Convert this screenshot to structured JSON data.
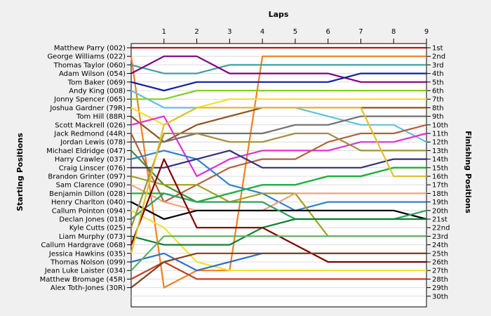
{
  "chart_data": {
    "type": "line",
    "title": "",
    "xlabel": "Laps",
    "ylabel_left": "Starting Positions",
    "ylabel_right": "Finishing Positions",
    "x": [
      0,
      1,
      2,
      3,
      4,
      5,
      6,
      7,
      8,
      9
    ],
    "x_tick_labels": [
      "1",
      "2",
      "3",
      "4",
      "5",
      "6",
      "7",
      "8",
      "9"
    ],
    "y_range": [
      1,
      30
    ],
    "grid": "horizontal",
    "starting_labels": [
      "Matthew Parry (002)",
      "George Williams (022)",
      "Thomas Taylor (060)",
      "Adam Wilson (054)",
      "Tom Baker (069)",
      "Andy King (008)",
      "Jonny Spencer (065)",
      "Joshua Gardner (79R)",
      "Tom Hill (88R)",
      "Scott Mackrell (026)",
      "Jack Redmond (44R)",
      "Jordan Lewis (078)",
      "Michael Eldridge (047)",
      "Harry Crawley (037)",
      "Craig Linscer (076)",
      "Brandon Grinter (097)",
      "Sam Clarence (090)",
      "Benjamin Dillon (028)",
      "Henry Charlton (040)",
      "Callum Pointon (094)",
      "Declan Jones (018)",
      "Kyle Cutts (025)",
      "Liam Murphy (073)",
      "Callum Hardgrave (068)",
      "Jessica Hawkins (035)",
      "Thomas Nolson (099)",
      "Jean Luke Laister (034)",
      "Matthew Bromage (45R)",
      "Alex Toth-Jones (30R)"
    ],
    "finishing_labels": [
      "1st",
      "2nd",
      "3rd",
      "4th",
      "5th",
      "6th",
      "7th",
      "8th",
      "9th",
      "10th",
      "11th",
      "12th",
      "13th",
      "14th",
      "15th",
      "16th",
      "17th",
      "18th",
      "19th",
      "20th",
      "21st",
      "22nd",
      "23rd",
      "24th",
      "25th",
      "26th",
      "27th",
      "28th",
      "29th",
      "30th"
    ],
    "series": [
      {
        "color": "#b01818",
        "values": [
          1,
          1,
          1,
          1,
          1,
          1,
          1,
          1,
          1,
          1
        ]
      },
      {
        "color": "#f08020",
        "values": [
          2,
          29,
          27,
          27,
          2,
          2,
          2,
          2,
          2,
          2
        ]
      },
      {
        "color": "#40a0a0",
        "values": [
          3,
          4,
          4,
          3,
          3,
          3,
          3,
          3,
          3,
          3
        ]
      },
      {
        "color": "#800080",
        "values": [
          4,
          2,
          2,
          4,
          4,
          4,
          4,
          5,
          5,
          5
        ]
      },
      {
        "color": "#1020a0",
        "values": [
          5,
          6,
          5,
          5,
          5,
          5,
          5,
          4,
          4,
          4
        ]
      },
      {
        "color": "#60c0e0",
        "values": [
          6,
          8,
          8,
          8,
          8,
          8,
          9,
          10,
          10,
          12
        ]
      },
      {
        "color": "#80d020",
        "values": [
          7,
          7,
          6,
          6,
          6,
          6,
          6,
          6,
          6,
          6
        ]
      },
      {
        "color": "#f0e030",
        "values": [
          8,
          10,
          8,
          7,
          7,
          7,
          7,
          7,
          7,
          7
        ]
      },
      {
        "color": "#905020",
        "values": [
          9,
          12,
          10,
          9,
          8,
          8,
          8,
          8,
          8,
          8
        ]
      },
      {
        "color": "#e030d0",
        "values": [
          10,
          9,
          16,
          14,
          13,
          13,
          13,
          12,
          12,
          11
        ]
      },
      {
        "color": "#b06040",
        "values": [
          11,
          19,
          17,
          15,
          14,
          14,
          12,
          11,
          11,
          10
        ]
      },
      {
        "color": "#707070",
        "values": [
          12,
          12,
          11,
          11,
          11,
          10,
          10,
          9,
          9,
          9
        ]
      },
      {
        "color": "#409030",
        "values": [
          13,
          17,
          19,
          18,
          17,
          17,
          16,
          16,
          15,
          15
        ]
      },
      {
        "color": "#3080d0",
        "values": [
          14,
          13,
          14,
          17,
          18,
          20,
          19,
          19,
          19,
          19
        ]
      },
      {
        "color": "#303080",
        "values": [
          15,
          15,
          14,
          13,
          15,
          15,
          15,
          15,
          14,
          14
        ]
      },
      {
        "color": "#a0a020",
        "values": [
          16,
          17,
          17,
          19,
          18,
          18,
          23,
          23,
          23,
          23
        ]
      },
      {
        "color": "#f0a080",
        "values": [
          17,
          19,
          20,
          20,
          20,
          18,
          18,
          18,
          18,
          18
        ]
      },
      {
        "color": "#20b040",
        "values": [
          18,
          18,
          19,
          18,
          17,
          17,
          16,
          16,
          15,
          15
        ]
      },
      {
        "color": "#000000",
        "values": [
          19,
          21,
          20,
          20,
          20,
          20,
          20,
          20,
          20,
          21
        ]
      },
      {
        "color": "#f0e030",
        "values": [
          20,
          22,
          26,
          27,
          27,
          27,
          27,
          27,
          27,
          27
        ]
      },
      {
        "color": "#30a060",
        "values": [
          21,
          18,
          19,
          19,
          19,
          21,
          21,
          21,
          21,
          20
        ]
      },
      {
        "color": "#a09040",
        "values": [
          22,
          11,
          11,
          12,
          12,
          11,
          11,
          13,
          13,
          13
        ]
      },
      {
        "color": "#108030",
        "values": [
          23,
          24,
          24,
          24,
          22,
          21,
          21,
          21,
          21,
          21
        ]
      },
      {
        "color": "#800000",
        "values": [
          24,
          14,
          22,
          22,
          22,
          24,
          26,
          26,
          26,
          26
        ]
      },
      {
        "color": "#e0c030",
        "values": [
          25,
          10,
          8,
          8,
          8,
          8,
          8,
          8,
          16,
          16
        ]
      },
      {
        "color": "#3070c0",
        "values": [
          26,
          25,
          27,
          26,
          25,
          25,
          25,
          25,
          25,
          25
        ]
      },
      {
        "color": "#60b060",
        "values": [
          27,
          23,
          23,
          23,
          23,
          23,
          23,
          23,
          23,
          23
        ]
      },
      {
        "color": "#c04020",
        "values": [
          28,
          26,
          28,
          28,
          28,
          28,
          28,
          28,
          28,
          28
        ]
      },
      {
        "color": "#804020",
        "values": [
          29,
          26,
          25,
          25,
          25,
          25,
          25,
          25,
          25,
          25
        ]
      }
    ]
  }
}
